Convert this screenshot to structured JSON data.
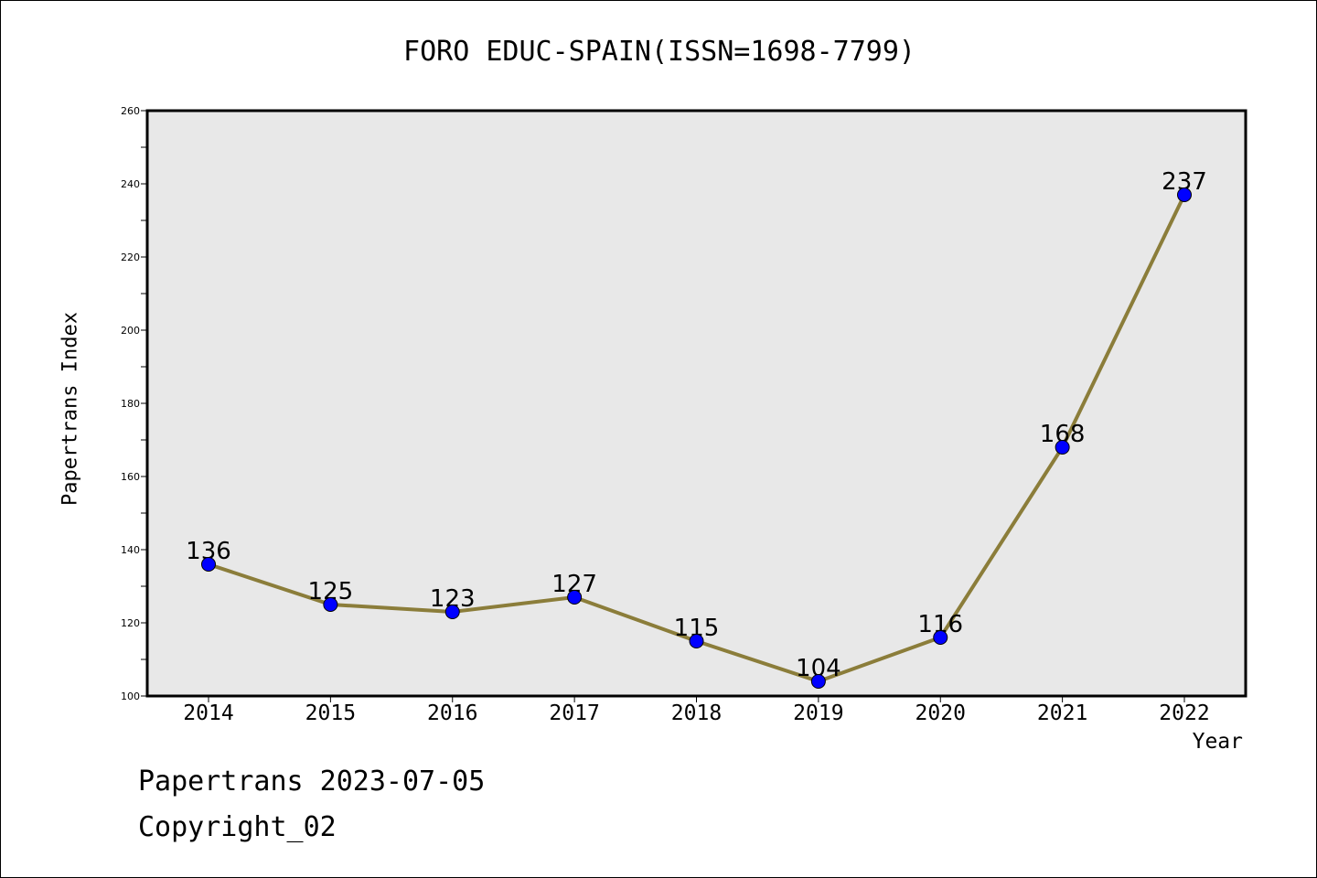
{
  "chart_data": {
    "type": "line",
    "title": "FORO EDUC-SPAIN(ISSN=1698-7799)",
    "xlabel": "Year",
    "ylabel": "Papertrans Index",
    "categories": [
      "2014",
      "2015",
      "2016",
      "2017",
      "2018",
      "2019",
      "2020",
      "2021",
      "2022"
    ],
    "values": [
      136,
      125,
      123,
      127,
      115,
      104,
      116,
      168,
      237
    ],
    "data_labels": [
      "136",
      "125",
      "123",
      "127",
      "115",
      "104",
      "116",
      "168",
      "237"
    ],
    "ylim": [
      100,
      260
    ],
    "y_ticks": [
      "100",
      "120",
      "140",
      "160",
      "180",
      "200",
      "220",
      "240",
      "260"
    ],
    "grid": false,
    "line_color": "#8b7d3a",
    "marker_color": "#0000ff",
    "plot_background": "#e8e8e8"
  },
  "footer": {
    "date_text": "Papertrans 2023-07-05",
    "copyright_text": "Copyright_02"
  }
}
